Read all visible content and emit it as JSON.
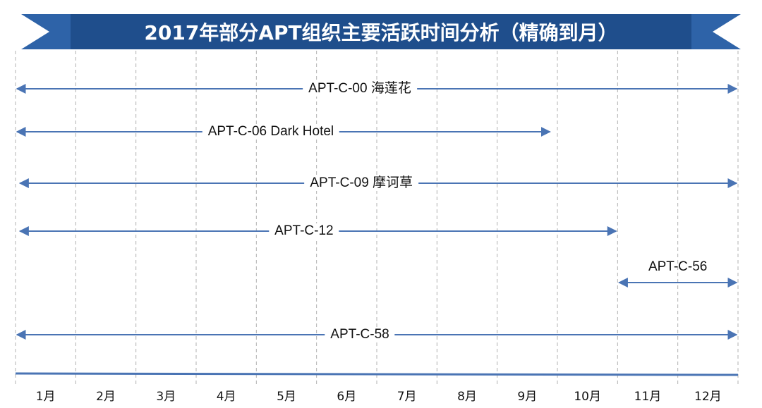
{
  "chart_data": {
    "type": "timeline",
    "title": "2017年部分APT组织主要活跃时间分析（精确到月）",
    "x_categories": [
      "1月",
      "2月",
      "3月",
      "4月",
      "5月",
      "6月",
      "7月",
      "8月",
      "9月",
      "10月",
      "11月",
      "12月"
    ],
    "series": [
      {
        "name": "APT-C-00 海莲花",
        "start": 1.0,
        "end": 13.0
      },
      {
        "name": "APT-C-06 Dark Hotel",
        "start": 1.0,
        "end": 9.9
      },
      {
        "name": "APT-C-09 摩诃草",
        "start": 1.05,
        "end": 13.0
      },
      {
        "name": "APT-C-12",
        "start": 1.05,
        "end": 11.0
      },
      {
        "name": "APT-C-56",
        "start": 11.0,
        "end": 13.0
      },
      {
        "name": "APT-C-58",
        "start": 1.0,
        "end": 13.0
      }
    ],
    "colors": {
      "title_banner": "#1f4e8c",
      "title_wing": "#2e63a8",
      "arrow": "#4a74b4",
      "grid": "#b0b0b0"
    }
  }
}
